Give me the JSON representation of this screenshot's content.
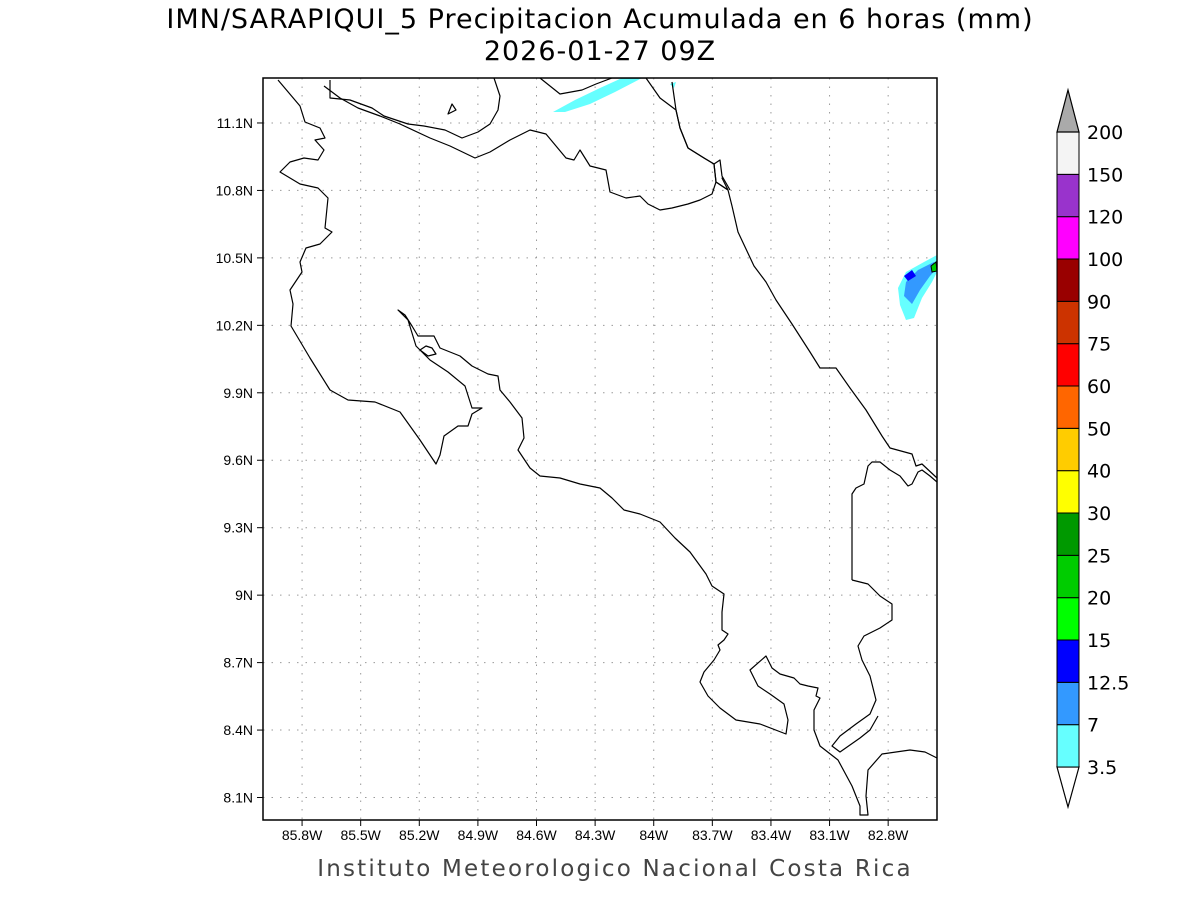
{
  "title_line1": "IMN/SARAPIQUI_5 Precipitacion Acumulada en 6 horas (mm)",
  "title_line2": "2026-01-27 09Z",
  "credit": "Instituto Meteorologico Nacional Costa Rica",
  "chart_data": {
    "type": "heatmap",
    "variable": "Precipitacion Acumulada en 6 horas",
    "units": "mm",
    "valid_time": "2026-01-27 09Z",
    "lon_range": [
      -86.0,
      -82.55
    ],
    "lat_range": [
      8.0,
      11.3
    ],
    "lat_ticks": [
      {
        "value": 11.1,
        "label": "11.1N"
      },
      {
        "value": 10.8,
        "label": "10.8N"
      },
      {
        "value": 10.5,
        "label": "10.5N"
      },
      {
        "value": 10.2,
        "label": "10.2N"
      },
      {
        "value": 9.9,
        "label": "9.9N"
      },
      {
        "value": 9.6,
        "label": "9.6N"
      },
      {
        "value": 9.3,
        "label": "9.3N"
      },
      {
        "value": 9.0,
        "label": "9N"
      },
      {
        "value": 8.7,
        "label": "8.7N"
      },
      {
        "value": 8.4,
        "label": "8.4N"
      },
      {
        "value": 8.1,
        "label": "8.1N"
      }
    ],
    "lon_ticks": [
      {
        "value": -85.8,
        "label": "85.8W"
      },
      {
        "value": -85.5,
        "label": "85.5W"
      },
      {
        "value": -85.2,
        "label": "85.2W"
      },
      {
        "value": -84.9,
        "label": "84.9W"
      },
      {
        "value": -84.6,
        "label": "84.6W"
      },
      {
        "value": -84.3,
        "label": "84.3W"
      },
      {
        "value": -84.0,
        "label": "84W"
      },
      {
        "value": -83.7,
        "label": "83.7W"
      },
      {
        "value": -83.4,
        "label": "83.4W"
      },
      {
        "value": -83.1,
        "label": "83.1W"
      },
      {
        "value": -82.8,
        "label": "82.8W"
      }
    ],
    "grid": true,
    "colorbar": {
      "placement": "right",
      "levels": [
        {
          "label": "3.5",
          "color": "#66ffff"
        },
        {
          "label": "7",
          "color": "#3399ff"
        },
        {
          "label": "12.5",
          "color": "#0000ff"
        },
        {
          "label": "15",
          "color": "#00ff00"
        },
        {
          "label": "20",
          "color": "#00cc00"
        },
        {
          "label": "25",
          "color": "#009900"
        },
        {
          "label": "30",
          "color": "#ffff00"
        },
        {
          "label": "40",
          "color": "#ffcc00"
        },
        {
          "label": "50",
          "color": "#ff6600"
        },
        {
          "label": "60",
          "color": "#ff0000"
        },
        {
          "label": "75",
          "color": "#cc3300"
        },
        {
          "label": "90",
          "color": "#990000"
        },
        {
          "label": "100",
          "color": "#ff00ff"
        },
        {
          "label": "120",
          "color": "#9933cc"
        },
        {
          "label": "150",
          "color": "#f4f4f4"
        },
        {
          "label": "200",
          "color": "#aaaaaa"
        }
      ],
      "below_color": "#ffffff"
    }
  }
}
